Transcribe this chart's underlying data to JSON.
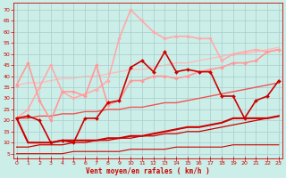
{
  "bg_color": "#cceee8",
  "grid_color": "#aacccc",
  "xlabel": "Vent moyen/en rafales ( km/h )",
  "xlabel_color": "#cc0000",
  "tick_color": "#cc0000",
  "x_ticks": [
    0,
    1,
    2,
    3,
    4,
    5,
    6,
    7,
    8,
    9,
    10,
    11,
    12,
    13,
    14,
    15,
    16,
    17,
    18,
    19,
    20,
    21,
    22,
    23
  ],
  "y_ticks": [
    5,
    10,
    15,
    20,
    25,
    30,
    35,
    40,
    45,
    50,
    55,
    60,
    65,
    70
  ],
  "ylim": [
    3,
    73
  ],
  "xlim": [
    -0.3,
    23.3
  ],
  "series": [
    {
      "x": [
        0,
        1,
        2,
        3,
        4,
        5,
        6,
        7,
        8,
        9,
        10,
        11,
        12,
        13,
        14,
        15,
        16,
        17,
        18,
        19,
        20,
        21,
        22,
        23
      ],
      "y": [
        21,
        25,
        35,
        45,
        33,
        30,
        32,
        34,
        38,
        57,
        70,
        65,
        60,
        57,
        58,
        58,
        57,
        57,
        47,
        50,
        51,
        52,
        51,
        52
      ],
      "color": "#ffaaaa",
      "lw": 1.2,
      "marker": "D",
      "ms": 2.0,
      "zorder": 3
    },
    {
      "x": [
        0,
        1,
        2,
        3,
        4,
        5,
        6,
        7,
        8,
        9,
        10,
        11,
        12,
        13,
        14,
        15,
        16,
        17,
        18,
        19,
        20,
        21,
        22,
        23
      ],
      "y": [
        36,
        46,
        29,
        20,
        33,
        33,
        31,
        45,
        27,
        29,
        38,
        38,
        40,
        40,
        39,
        40,
        42,
        43,
        44,
        46,
        46,
        47,
        51,
        52
      ],
      "color": "#ff9999",
      "lw": 1.2,
      "marker": "D",
      "ms": 2.0,
      "zorder": 3
    },
    {
      "x": [
        0,
        1,
        2,
        3,
        4,
        5,
        6,
        7,
        8,
        9,
        10,
        11,
        12,
        13,
        14,
        15,
        16,
        17,
        18,
        19,
        20,
        21,
        22,
        23
      ],
      "y": [
        21,
        22,
        20,
        10,
        11,
        10,
        21,
        21,
        28,
        29,
        44,
        47,
        42,
        51,
        42,
        43,
        42,
        42,
        31,
        31,
        21,
        29,
        31,
        38
      ],
      "color": "#cc0000",
      "lw": 1.2,
      "marker": "D",
      "ms": 2.0,
      "zorder": 5
    },
    {
      "x": [
        0,
        1,
        2,
        3,
        4,
        5,
        6,
        7,
        8,
        9,
        10,
        11,
        12,
        13,
        14,
        15,
        16,
        17,
        18,
        19,
        20,
        21,
        22,
        23
      ],
      "y": [
        36,
        37,
        37,
        38,
        39,
        39,
        40,
        40,
        41,
        42,
        43,
        43,
        44,
        45,
        46,
        46,
        47,
        48,
        49,
        50,
        50,
        51,
        52,
        53
      ],
      "color": "#ffbbbb",
      "lw": 1.0,
      "marker": null,
      "zorder": 1
    },
    {
      "x": [
        0,
        1,
        2,
        3,
        4,
        5,
        6,
        7,
        8,
        9,
        10,
        11,
        12,
        13,
        14,
        15,
        16,
        17,
        18,
        19,
        20,
        21,
        22,
        23
      ],
      "y": [
        21,
        21,
        22,
        22,
        23,
        23,
        24,
        24,
        25,
        25,
        26,
        26,
        27,
        28,
        28,
        29,
        30,
        31,
        32,
        33,
        34,
        35,
        36,
        37
      ],
      "color": "#ee5555",
      "lw": 1.0,
      "marker": null,
      "zorder": 2
    },
    {
      "x": [
        0,
        1,
        2,
        3,
        4,
        5,
        6,
        7,
        8,
        9,
        10,
        11,
        12,
        13,
        14,
        15,
        16,
        17,
        18,
        19,
        20,
        21,
        22,
        23
      ],
      "y": [
        8,
        8,
        9,
        9,
        9,
        10,
        10,
        11,
        11,
        12,
        12,
        13,
        13,
        14,
        14,
        15,
        15,
        16,
        17,
        18,
        19,
        20,
        21,
        22
      ],
      "color": "#cc0000",
      "lw": 0.9,
      "marker": null,
      "zorder": 2
    },
    {
      "x": [
        0,
        1,
        2,
        3,
        4,
        5,
        6,
        7,
        8,
        9,
        10,
        11,
        12,
        13,
        14,
        15,
        16,
        17,
        18,
        19,
        20,
        21,
        22,
        23
      ],
      "y": [
        5,
        5,
        5,
        5,
        5,
        6,
        6,
        6,
        6,
        6,
        7,
        7,
        7,
        7,
        8,
        8,
        8,
        8,
        8,
        9,
        9,
        9,
        9,
        9
      ],
      "color": "#cc0000",
      "lw": 0.8,
      "marker": null,
      "zorder": 2
    },
    {
      "x": [
        0,
        1,
        2,
        3,
        4,
        5,
        6,
        7,
        8,
        9,
        10,
        11,
        12,
        13,
        14,
        15,
        16,
        17,
        18,
        19,
        20,
        21,
        22,
        23
      ],
      "y": [
        21,
        10,
        10,
        10,
        11,
        11,
        11,
        11,
        12,
        12,
        13,
        13,
        14,
        15,
        16,
        17,
        17,
        18,
        19,
        21,
        21,
        21,
        21,
        22
      ],
      "color": "#cc0000",
      "lw": 1.5,
      "marker": null,
      "zorder": 4
    }
  ]
}
